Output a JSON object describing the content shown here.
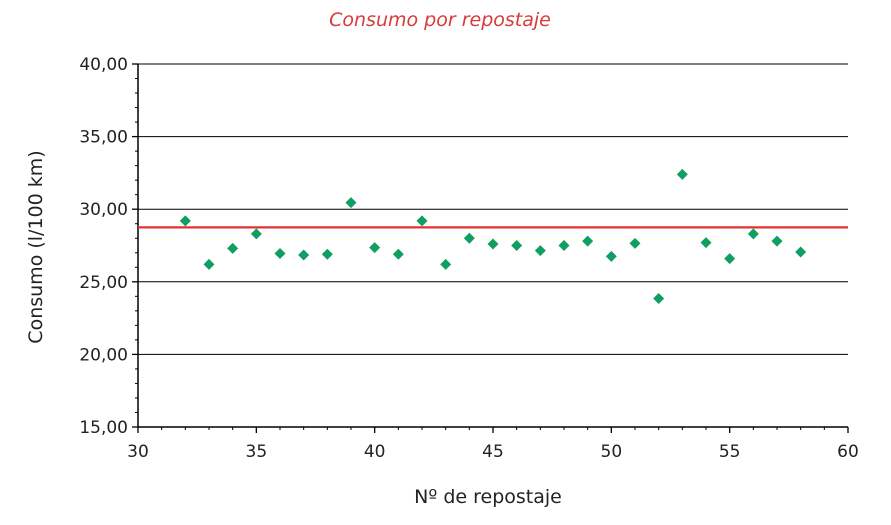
{
  "chart_data": {
    "type": "scatter",
    "title": "Consumo por repostaje",
    "xlabel": "Nº de repostaje",
    "ylabel": "Consumo (l/100 km)",
    "xlim": [
      30,
      60
    ],
    "ylim": [
      15,
      40
    ],
    "x_ticks": [
      30,
      35,
      40,
      45,
      50,
      55,
      60
    ],
    "x_tick_labels": [
      "30",
      "35",
      "40",
      "45",
      "50",
      "55",
      "60"
    ],
    "y_ticks": [
      15,
      20,
      25,
      30,
      35,
      40
    ],
    "y_tick_labels": [
      "15,00",
      "20,00",
      "25,00",
      "30,00",
      "35,00",
      "40,00"
    ],
    "grid": "horizontal",
    "legend": "none",
    "colors": {
      "title": "#d83b3b",
      "points": "#109e62",
      "reference_line": "#e53030",
      "axis": "#000000",
      "grid": "#000000"
    },
    "reference_line": {
      "y": 28.75
    },
    "series": [
      {
        "points": [
          {
            "x": 32,
            "y": 29.2
          },
          {
            "x": 33,
            "y": 26.2
          },
          {
            "x": 34,
            "y": 27.3
          },
          {
            "x": 35,
            "y": 28.3
          },
          {
            "x": 36,
            "y": 26.95
          },
          {
            "x": 37,
            "y": 26.85
          },
          {
            "x": 38,
            "y": 26.9
          },
          {
            "x": 39,
            "y": 30.45
          },
          {
            "x": 40,
            "y": 27.35
          },
          {
            "x": 41,
            "y": 26.9
          },
          {
            "x": 42,
            "y": 29.2
          },
          {
            "x": 43,
            "y": 26.2
          },
          {
            "x": 44,
            "y": 28.0
          },
          {
            "x": 45,
            "y": 27.6
          },
          {
            "x": 46,
            "y": 27.5
          },
          {
            "x": 47,
            "y": 27.15
          },
          {
            "x": 48,
            "y": 27.5
          },
          {
            "x": 49,
            "y": 27.8
          },
          {
            "x": 50,
            "y": 26.75
          },
          {
            "x": 51,
            "y": 27.65
          },
          {
            "x": 52,
            "y": 23.85
          },
          {
            "x": 53,
            "y": 32.4
          },
          {
            "x": 54,
            "y": 27.7
          },
          {
            "x": 55,
            "y": 26.6
          },
          {
            "x": 56,
            "y": 28.3
          },
          {
            "x": 57,
            "y": 27.8
          },
          {
            "x": 58,
            "y": 27.05
          }
        ]
      }
    ]
  }
}
